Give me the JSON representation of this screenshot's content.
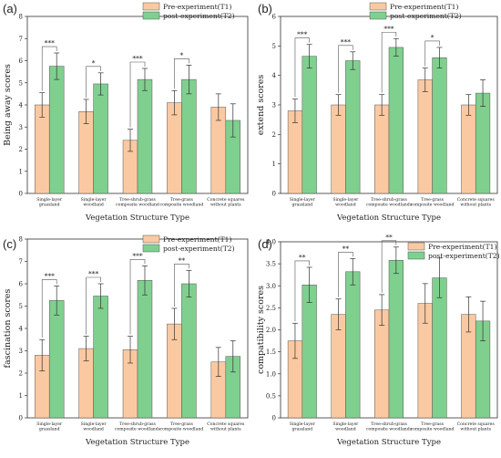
{
  "chart_data": [
    {
      "type": "bar",
      "panel": "(a)",
      "ylabel": "Being away scores",
      "xlabel": "Vegetation Structure Type",
      "ylim": [
        0,
        8
      ],
      "yticks": [
        0,
        1,
        2,
        3,
        4,
        5,
        6,
        7,
        8
      ],
      "categories": [
        [
          "Single-layer",
          "grassland"
        ],
        [
          "Single-layer",
          "woodland"
        ],
        [
          "Tree-shrub-grass",
          "composite woodland"
        ],
        [
          "Tree-grass",
          "composite woodland"
        ],
        [
          "Concrete squares",
          "without plants"
        ]
      ],
      "series": [
        {
          "name": "Pre-experiment(T1)",
          "values": [
            4.0,
            3.7,
            2.4,
            4.1,
            3.9
          ],
          "errors": [
            0.55,
            0.55,
            0.5,
            0.55,
            0.6
          ]
        },
        {
          "name": "post-experiment(T2)",
          "values": [
            5.75,
            4.95,
            5.15,
            5.15,
            3.3
          ],
          "errors": [
            0.6,
            0.5,
            0.5,
            0.65,
            0.75
          ]
        }
      ],
      "significance": [
        "***",
        "*",
        "***",
        "*",
        ""
      ],
      "legend_position": "top-right"
    },
    {
      "type": "bar",
      "panel": "(b)",
      "ylabel": "extend scores",
      "xlabel": "Vegetation Structure Type",
      "ylim": [
        0,
        6
      ],
      "yticks": [
        0,
        1,
        2,
        3,
        4,
        5,
        6
      ],
      "categories": [
        [
          "Single-layer",
          "grassland"
        ],
        [
          "Single-layer",
          "woodland"
        ],
        [
          "Tree-shrub-grass",
          "composite woodlands"
        ],
        [
          "Tree-grass",
          "composite woodland"
        ],
        [
          "Concrete squares",
          "without plants"
        ]
      ],
      "series": [
        {
          "name": "Pre-experiment(T1)",
          "values": [
            2.8,
            3.0,
            3.0,
            3.85,
            3.0
          ],
          "errors": [
            0.4,
            0.35,
            0.35,
            0.4,
            0.35
          ]
        },
        {
          "name": "post-experiment(T2)",
          "values": [
            4.65,
            4.5,
            4.95,
            4.6,
            3.4
          ],
          "errors": [
            0.4,
            0.3,
            0.3,
            0.35,
            0.45
          ]
        }
      ],
      "significance": [
        "***",
        "***",
        "***",
        "*",
        ""
      ],
      "legend_position": "top-right"
    },
    {
      "type": "bar",
      "panel": "(c)",
      "ylabel": "fascination scores",
      "xlabel": "Vegetation Structure Type",
      "ylim": [
        0,
        8
      ],
      "yticks": [
        0,
        1,
        2,
        3,
        4,
        5,
        6,
        7,
        8
      ],
      "categories": [
        [
          "Single-layer",
          "grassland"
        ],
        [
          "Single-layer",
          "woodland"
        ],
        [
          "Tree-shrub-grass",
          "composite woodlands"
        ],
        [
          "Tree-grass",
          "composite woodland"
        ],
        [
          "Concrete squares",
          "without plants"
        ]
      ],
      "series": [
        {
          "name": "Pre-experiment(T1)",
          "values": [
            2.8,
            3.1,
            3.05,
            4.2,
            2.5
          ],
          "errors": [
            0.7,
            0.55,
            0.6,
            0.7,
            0.65
          ]
        },
        {
          "name": "post-experiment(T2)",
          "values": [
            5.25,
            5.45,
            6.15,
            6.0,
            2.75
          ],
          "errors": [
            0.65,
            0.55,
            0.65,
            0.6,
            0.7
          ]
        }
      ],
      "significance": [
        "***",
        "***",
        "***",
        "**",
        ""
      ],
      "legend_position": "top-right"
    },
    {
      "type": "bar",
      "panel": "(d)",
      "ylabel": "compatibility scores",
      "xlabel": "Vegetation Structure Type",
      "ylim": [
        0,
        4.0
      ],
      "yticks": [
        0,
        0.5,
        1.0,
        1.5,
        2.0,
        2.5,
        3.0,
        3.5,
        4.0
      ],
      "ytick_labels": [
        "0",
        "0.5",
        "1.0",
        "1.5",
        "2.0",
        "2.5",
        "3.0",
        "3.5",
        "4.0"
      ],
      "categories": [
        [
          "Single-layer",
          "grassland"
        ],
        [
          "Single-layer",
          "woodland"
        ],
        [
          "Tree-shrub-grass",
          "composite woodlands"
        ],
        [
          "Tree-grass",
          "composite woodland"
        ],
        [
          "Concrete squares",
          "without plants"
        ]
      ],
      "series": [
        {
          "name": "Pre-experiment(T1)",
          "values": [
            1.75,
            2.35,
            2.45,
            2.6,
            2.35
          ],
          "errors": [
            0.4,
            0.35,
            0.35,
            0.45,
            0.4
          ]
        },
        {
          "name": "post-experiment(T2)",
          "values": [
            3.02,
            3.32,
            3.58,
            3.18,
            2.2
          ],
          "errors": [
            0.4,
            0.3,
            0.3,
            0.45,
            0.45
          ]
        }
      ],
      "significance": [
        "**",
        "**",
        "**",
        "",
        ""
      ],
      "legend_position": "top-right"
    }
  ],
  "colors": {
    "T1": "#fbc9a1",
    "T2": "#7fd08e",
    "bar_edge": "#555555",
    "error": "#333333"
  }
}
